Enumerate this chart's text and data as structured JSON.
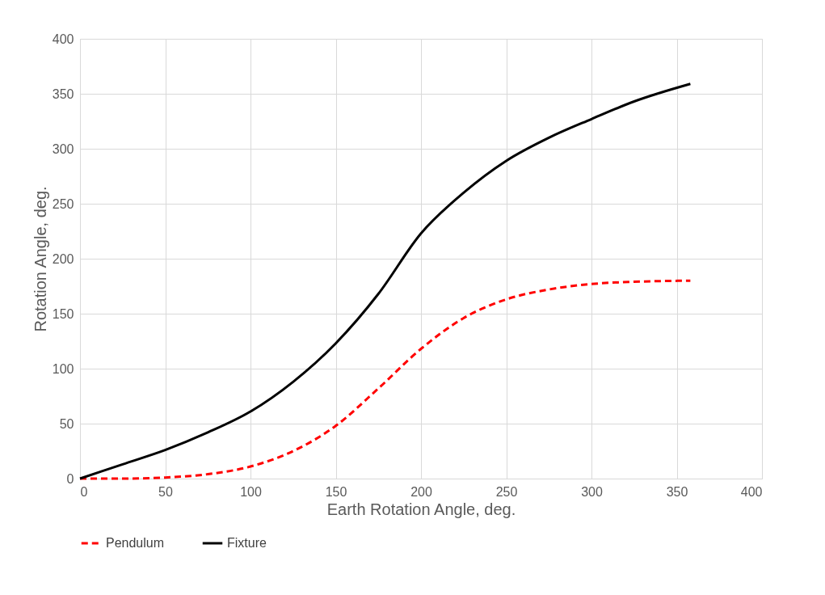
{
  "chart_data": {
    "type": "line",
    "xlabel": "Earth Rotation Angle, deg.",
    "ylabel": "Rotation Angle, deg.",
    "xlim": [
      0,
      400
    ],
    "xticks": [
      0,
      50,
      100,
      150,
      200,
      250,
      300,
      350,
      400
    ],
    "ylim": [
      0,
      400
    ],
    "yticks": [
      0,
      50,
      100,
      150,
      200,
      250,
      300,
      350,
      400
    ],
    "grid": true,
    "legend": "bottom",
    "marker": "none",
    "x": [
      0,
      25,
      50,
      75,
      100,
      125,
      150,
      175,
      200,
      225,
      250,
      275,
      300,
      325,
      358
    ],
    "series": [
      {
        "name": "Pendulum",
        "color": "#ff0000",
        "line_style": "dashed",
        "values": [
          0,
          0,
          1,
          4,
          11,
          25,
          48,
          82,
          118,
          146,
          163,
          172,
          177,
          179,
          180
        ]
      },
      {
        "name": "Fixture",
        "color": "#000000",
        "line_style": "solid",
        "values": [
          0,
          13,
          26,
          42,
          61,
          88,
          123,
          168,
          223,
          260,
          289,
          310,
          327,
          343,
          359
        ]
      }
    ]
  }
}
